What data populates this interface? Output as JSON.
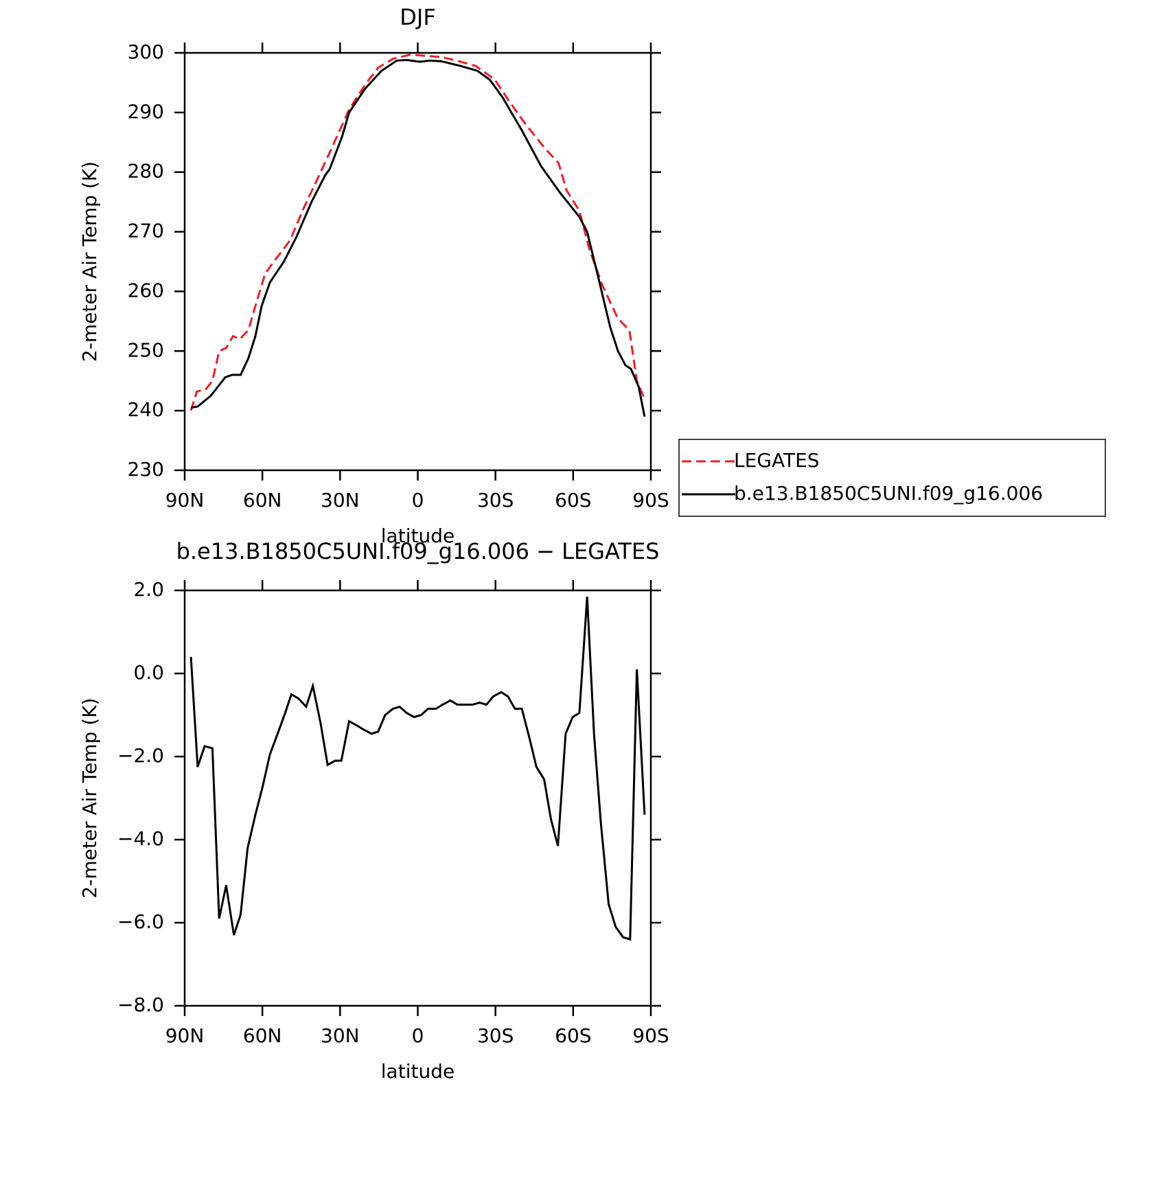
{
  "chart_data": [
    {
      "type": "line",
      "title": "DJF",
      "x_label": "latitude",
      "y_label": "2-meter Air Temp (K)",
      "xlim": [
        90,
        -90
      ],
      "xticks": [
        {
          "value": 90,
          "label": "90N"
        },
        {
          "value": 60,
          "label": "60N"
        },
        {
          "value": 30,
          "label": "30N"
        },
        0,
        {
          "value": -30,
          "label": "30S"
        },
        {
          "value": -60,
          "label": "60S"
        },
        {
          "value": -90,
          "label": "90S"
        }
      ],
      "ylim": [
        230,
        300
      ],
      "yticks": [
        230,
        240,
        250,
        260,
        270,
        280,
        290,
        300
      ],
      "legend": "right",
      "series": [
        {
          "name": "LEGATES",
          "color": "#e8212a",
          "dashed": true,
          "x": [
            87.6,
            85.3,
            82.0,
            79.3,
            76.7,
            74.0,
            71.3,
            68.7,
            65.4,
            62.4,
            58.9,
            54.7,
            49.4,
            44.0,
            37.5,
            32.2,
            26.5,
            20.6,
            15.3,
            9.6,
            2.8,
            -3.1,
            -9.0,
            -15.0,
            -22.4,
            -29.8,
            -35.1,
            -41.7,
            -49.1,
            -54.4,
            -57.4,
            -62.4,
            -66.3,
            -71.3,
            -77.2,
            -81.7,
            -84.6,
            -87.6
          ],
          "values": [
            240,
            243.2,
            243.5,
            245,
            250,
            250.5,
            252.5,
            252,
            253.5,
            258,
            263,
            265.5,
            268.5,
            274,
            280,
            285,
            290.5,
            294.5,
            297.5,
            299,
            299.7,
            299.5,
            299.3,
            298.7,
            297.8,
            295.5,
            292,
            288,
            284,
            281.5,
            277,
            273.5,
            267,
            261,
            255.5,
            253.5,
            245,
            242
          ]
        },
        {
          "name": "b.e13.B1850C5UNI.f09_g16.006",
          "color": "#000000",
          "dashed": false,
          "x": [
            87.6,
            85.0,
            79.9,
            74.3,
            71.6,
            68.4,
            65.4,
            62.7,
            60.3,
            57.1,
            51.7,
            47.0,
            41.0,
            35.7,
            34.0,
            29.2,
            26.5,
            20.3,
            14.0,
            8.1,
            4.3,
            -0.8,
            -4.7,
            -9.1,
            -16.5,
            -23.0,
            -27.8,
            -32.8,
            -40.2,
            -47.6,
            -55.0,
            -62.4,
            -65.4,
            -69.9,
            -74.3,
            -77.3,
            -80.2,
            -82.3,
            -85.3,
            -87.6
          ],
          "values": [
            240.5,
            240.7,
            242.5,
            245.6,
            246,
            246,
            248.8,
            252.5,
            257.5,
            261.5,
            265,
            269,
            275,
            279.5,
            280.5,
            286,
            290,
            294,
            297,
            298.7,
            298.8,
            298.5,
            298.7,
            298.6,
            297.8,
            297,
            295.5,
            292.5,
            287,
            281,
            276.5,
            272.5,
            270,
            262,
            254,
            250,
            247.6,
            247,
            244,
            239
          ]
        }
      ]
    },
    {
      "type": "line",
      "title": "b.e13.B1850C5UNI.f09_g16.006 − LEGATES",
      "x_label": "latitude",
      "y_label": "2-meter Air Temp (K)",
      "xlim": [
        90,
        -90
      ],
      "xticks": [
        {
          "value": 90,
          "label": "90N"
        },
        {
          "value": 60,
          "label": "60N"
        },
        {
          "value": 30,
          "label": "30N"
        },
        0,
        {
          "value": -30,
          "label": "30S"
        },
        {
          "value": -60,
          "label": "60S"
        },
        {
          "value": -90,
          "label": "90S"
        }
      ],
      "ylim": [
        -8,
        2
      ],
      "yticks": [
        {
          "value": -8,
          "label": "−8.0"
        },
        {
          "value": -6,
          "label": "−6.0"
        },
        {
          "value": -4,
          "label": "−4.0"
        },
        {
          "value": -2,
          "label": "−2.0"
        },
        {
          "value": 0,
          "label": "0.0"
        },
        {
          "value": 2,
          "label": "2.0"
        }
      ],
      "series": [
        {
          "color": "#000000",
          "dashed": false,
          "x": [
            87.6,
            85.0,
            82.3,
            79.3,
            76.7,
            74.0,
            71.0,
            68.4,
            65.7,
            62.7,
            59.8,
            57.1,
            54.1,
            51.2,
            48.8,
            46.1,
            43.1,
            40.5,
            37.5,
            34.8,
            31.9,
            29.5,
            26.5,
            23.6,
            20.9,
            17.9,
            15.3,
            12.6,
            9.6,
            7.0,
            4.3,
            1.4,
            -1.3,
            -4.0,
            -7.0,
            -9.6,
            -12.6,
            -15.3,
            -18.3,
            -21.2,
            -23.9,
            -26.5,
            -29.2,
            -32.2,
            -34.8,
            -37.5,
            -40.2,
            -43.1,
            -45.8,
            -48.8,
            -51.4,
            -54.1,
            -57.1,
            -59.8,
            -62.4,
            -65.4,
            -68.1,
            -70.7,
            -73.7,
            -76.4,
            -79.3,
            -82.0,
            -84.6,
            -87.6
          ],
          "values": [
            0.4,
            -2.25,
            -1.75,
            -1.8,
            -5.9,
            -5.1,
            -6.3,
            -5.8,
            -4.2,
            -3.4,
            -2.7,
            -1.95,
            -1.45,
            -0.95,
            -0.5,
            -0.6,
            -0.8,
            -0.3,
            -1.2,
            -2.2,
            -2.1,
            -2.1,
            -1.15,
            -1.25,
            -1.35,
            -1.45,
            -1.4,
            -1.0,
            -0.85,
            -0.8,
            -0.95,
            -1.05,
            -1.0,
            -0.85,
            -0.85,
            -0.75,
            -0.65,
            -0.75,
            -0.75,
            -0.75,
            -0.7,
            -0.75,
            -0.55,
            -0.45,
            -0.55,
            -0.85,
            -0.85,
            -1.55,
            -2.25,
            -2.55,
            -3.5,
            -4.15,
            -1.45,
            -1.05,
            -0.95,
            1.85,
            -1.5,
            -3.6,
            -5.55,
            -6.1,
            -6.35,
            -6.4,
            0.1,
            -3.4
          ]
        }
      ]
    }
  ]
}
